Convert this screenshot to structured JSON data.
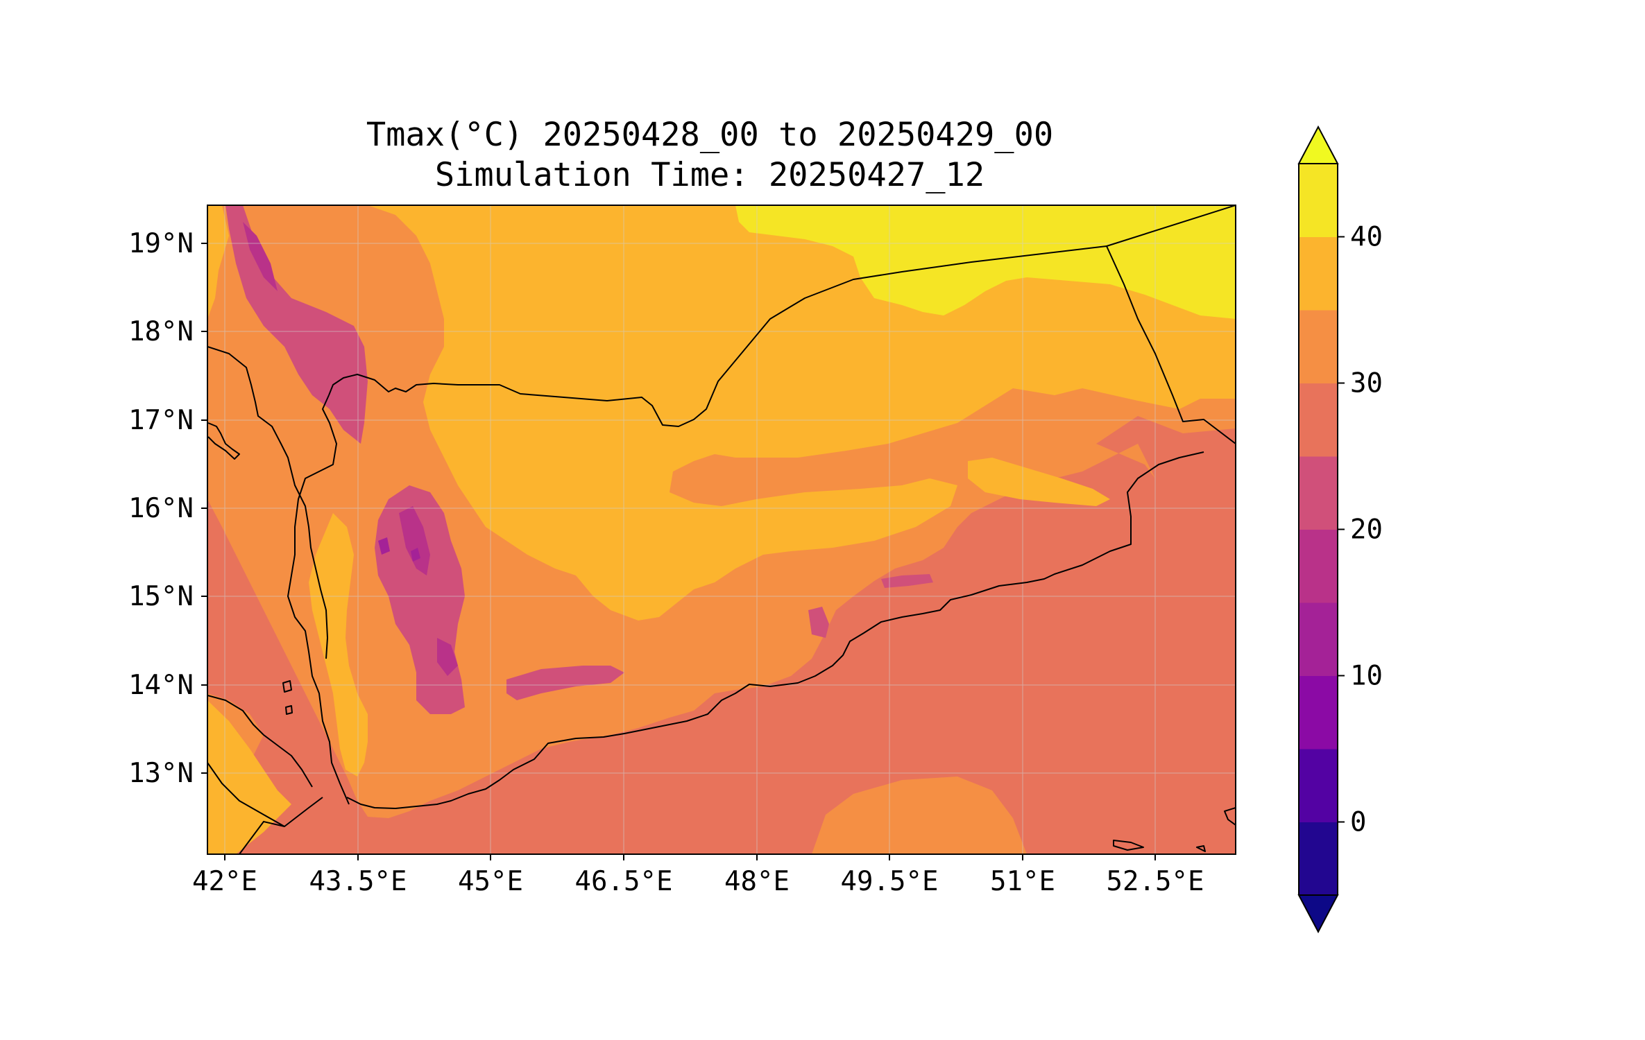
{
  "chart_data": {
    "type": "heatmap",
    "title": "Tmax(°C) 20250428_00 to 20250429_00",
    "subtitle": "Simulation Time: 20250427_12",
    "xlim": [
      41.9,
      53.5
    ],
    "ylim": [
      12.1,
      19.45
    ],
    "x_ticks": [
      "42°E",
      "43.5°E",
      "45°E",
      "46.5°E",
      "48°E",
      "49.5°E",
      "51°E",
      "52.5°E"
    ],
    "y_ticks": [
      "19°N",
      "18°N",
      "17°N",
      "16°N",
      "15°N",
      "14°N",
      "13°N"
    ],
    "colorbar": {
      "levels": [
        -5,
        0,
        5,
        10,
        15,
        20,
        25,
        30,
        35,
        40,
        45
      ],
      "tick_values": [
        0,
        10,
        20,
        30,
        40
      ],
      "tick_labels": [
        "0",
        "10",
        "20",
        "30",
        "40"
      ],
      "extend": "both",
      "under_color": "#0d0887",
      "over_color": "#f0f921",
      "colors": [
        "#220690",
        "#5302a3",
        "#8b0aa5",
        "#a42297",
        "#b93289",
        "#d0507a",
        "#e8735b",
        "#f58f44",
        "#fcb42e",
        "#f5e525"
      ]
    },
    "grid": true,
    "coastlines": true,
    "borders": true
  }
}
